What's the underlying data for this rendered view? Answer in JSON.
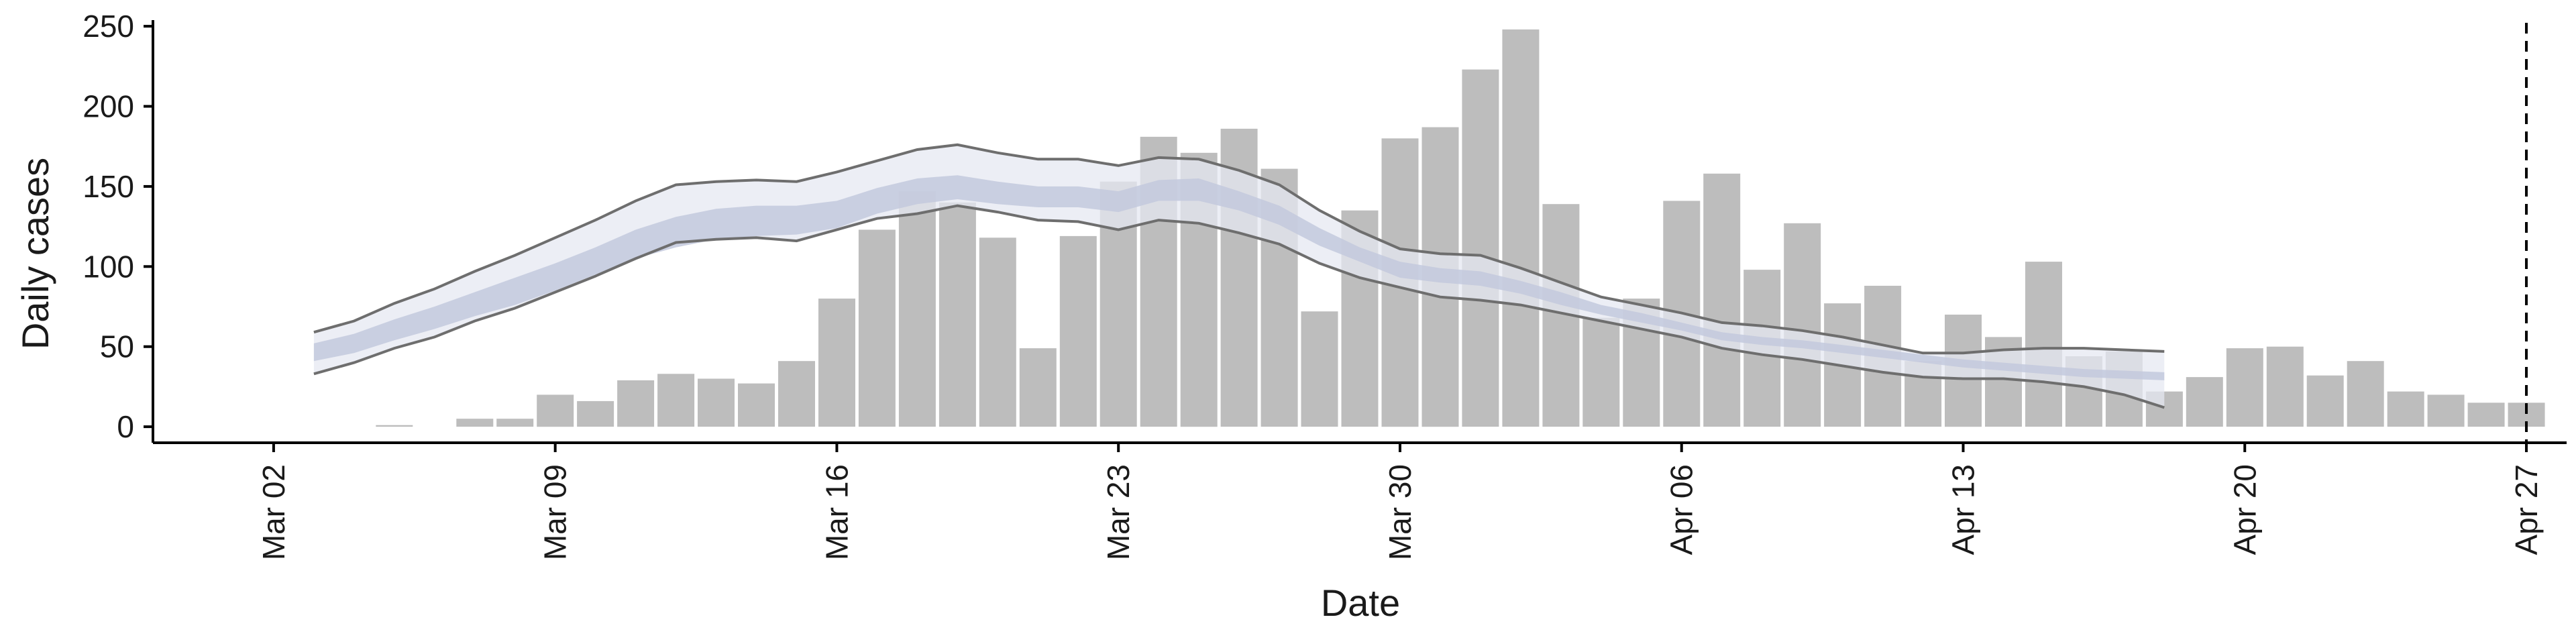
{
  "chart_data": {
    "type": "bar",
    "xlabel": "Date",
    "ylabel": "Daily cases",
    "ylim": [
      -10,
      258
    ],
    "y_ticks": [
      0,
      50,
      100,
      150,
      200,
      250
    ],
    "x_ticks": [
      "Mar 02",
      "Mar 09",
      "Mar 16",
      "Mar 23",
      "Mar 30",
      "Apr 06",
      "Apr 13",
      "Apr 20",
      "Apr 27"
    ],
    "x_range": [
      "2020-02-28",
      "2020-04-28"
    ],
    "reference_line": {
      "date": "2020-04-27",
      "style": "dashed",
      "color": "#000000"
    },
    "colors": {
      "bars": "#bdbdbd",
      "band_outer": "#e6e8f1",
      "band_inner": "#c3c9dd",
      "bound_lines": "#6e6e6e"
    },
    "grid": false,
    "legend": "none",
    "series": [
      {
        "kind": "bar",
        "dates": [
          "2020-03-05",
          "2020-03-07",
          "2020-03-08",
          "2020-03-09",
          "2020-03-10",
          "2020-03-11",
          "2020-03-12",
          "2020-03-13",
          "2020-03-14",
          "2020-03-15",
          "2020-03-16",
          "2020-03-17",
          "2020-03-18",
          "2020-03-19",
          "2020-03-20",
          "2020-03-21",
          "2020-03-22",
          "2020-03-23",
          "2020-03-24",
          "2020-03-25",
          "2020-03-26",
          "2020-03-27",
          "2020-03-28",
          "2020-03-29",
          "2020-03-30",
          "2020-03-31",
          "2020-04-01",
          "2020-04-02",
          "2020-04-03",
          "2020-04-04",
          "2020-04-05",
          "2020-04-06",
          "2020-04-07",
          "2020-04-08",
          "2020-04-09",
          "2020-04-10",
          "2020-04-11",
          "2020-04-12",
          "2020-04-13",
          "2020-04-14",
          "2020-04-15",
          "2020-04-16",
          "2020-04-17",
          "2020-04-18",
          "2020-04-19",
          "2020-04-20",
          "2020-04-21",
          "2020-04-22",
          "2020-04-23",
          "2020-04-24",
          "2020-04-25",
          "2020-04-26",
          "2020-04-27"
        ],
        "values": [
          1,
          5,
          5,
          20,
          16,
          29,
          33,
          30,
          27,
          41,
          80,
          123,
          147,
          140,
          118,
          49,
          119,
          153,
          181,
          171,
          186,
          161,
          72,
          135,
          180,
          187,
          223,
          248,
          139,
          68,
          80,
          141,
          158,
          98,
          127,
          77,
          88,
          41,
          70,
          56,
          103,
          44,
          47,
          22,
          31,
          49,
          50,
          32,
          41,
          22,
          20,
          15,
          15
        ]
      },
      {
        "kind": "band",
        "dates": [
          "2020-03-03",
          "2020-03-04",
          "2020-03-05",
          "2020-03-06",
          "2020-03-07",
          "2020-03-08",
          "2020-03-09",
          "2020-03-10",
          "2020-03-11",
          "2020-03-12",
          "2020-03-13",
          "2020-03-14",
          "2020-03-15",
          "2020-03-16",
          "2020-03-17",
          "2020-03-18",
          "2020-03-19",
          "2020-03-20",
          "2020-03-21",
          "2020-03-22",
          "2020-03-23",
          "2020-03-24",
          "2020-03-25",
          "2020-03-26",
          "2020-03-27",
          "2020-03-28",
          "2020-03-29",
          "2020-03-30",
          "2020-03-31",
          "2020-04-01",
          "2020-04-02",
          "2020-04-03",
          "2020-04-04",
          "2020-04-05",
          "2020-04-06",
          "2020-04-07",
          "2020-04-08",
          "2020-04-09",
          "2020-04-10",
          "2020-04-11",
          "2020-04-12",
          "2020-04-13",
          "2020-04-14",
          "2020-04-15",
          "2020-04-16",
          "2020-04-17",
          "2020-04-18"
        ],
        "upper": [
          59,
          66,
          77,
          86,
          97,
          107,
          118,
          129,
          141,
          151,
          153,
          154,
          153,
          159,
          166,
          173,
          176,
          171,
          167,
          167,
          163,
          168,
          167,
          160,
          151,
          135,
          122,
          111,
          108,
          107,
          99,
          90,
          81,
          76,
          71,
          65,
          63,
          60,
          56,
          51,
          46,
          46,
          48,
          49,
          49,
          48,
          47
        ],
        "lower": [
          33,
          40,
          49,
          56,
          66,
          74,
          84,
          94,
          105,
          115,
          117,
          118,
          116,
          123,
          130,
          133,
          138,
          134,
          129,
          128,
          123,
          129,
          127,
          121,
          114,
          102,
          93,
          87,
          81,
          79,
          76,
          71,
          66,
          61,
          56,
          49,
          45,
          42,
          38,
          34,
          31,
          30,
          30,
          28,
          25,
          20,
          12
        ],
        "inner_upper": [
          52,
          58,
          67,
          75,
          84,
          93,
          102,
          112,
          123,
          131,
          136,
          138,
          138,
          141,
          149,
          155,
          157,
          153,
          150,
          150,
          147,
          154,
          155,
          147,
          138,
          124,
          112,
          103,
          99,
          97,
          91,
          84,
          76,
          71,
          65,
          59,
          56,
          54,
          51,
          48,
          45,
          42,
          40,
          38,
          36,
          35,
          34
        ],
        "inner_lower": [
          41,
          46,
          54,
          61,
          69,
          76,
          85,
          95,
          105,
          112,
          117,
          119,
          120,
          124,
          133,
          139,
          142,
          139,
          137,
          137,
          134,
          141,
          141,
          135,
          126,
          113,
          103,
          93,
          90,
          88,
          83,
          76,
          70,
          65,
          60,
          54,
          51,
          49,
          46,
          43,
          40,
          37,
          35,
          33,
          31,
          30,
          29
        ]
      }
    ]
  }
}
